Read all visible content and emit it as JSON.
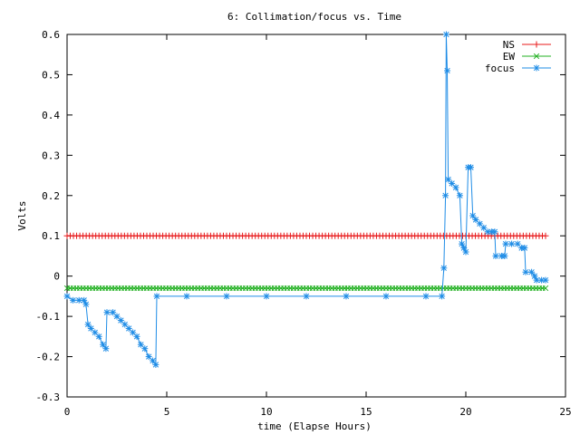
{
  "chart_data": {
    "type": "line",
    "title": "6: Collimation/focus vs. Time",
    "xlabel": "time (Elapse Hours)",
    "ylabel": "Volts",
    "xlim": [
      0,
      25
    ],
    "ylim": [
      -0.3,
      0.6
    ],
    "x_ticks": [
      0,
      5,
      10,
      15,
      20,
      25
    ],
    "y_ticks": [
      -0.3,
      -0.2,
      -0.1,
      0,
      0.1,
      0.2,
      0.3,
      0.4,
      0.5,
      0.6
    ],
    "x_tick_labels": [
      "0",
      "5",
      "10",
      "15",
      "20",
      "25"
    ],
    "y_tick_labels": [
      "-0.3",
      "-0.2",
      "-0.1",
      "0",
      "0.1",
      "0.2",
      "0.3",
      "0.4",
      "0.5",
      "0.6"
    ],
    "grid": false,
    "legend_position": "top-right",
    "series": [
      {
        "name": "NS",
        "color": "#e8191a",
        "marker": "plus",
        "x_range": [
          0,
          24
        ],
        "constant_value": 0.1
      },
      {
        "name": "EW",
        "color": "#20b020",
        "marker": "cross",
        "x_range": [
          0,
          24
        ],
        "constant_value": -0.03
      },
      {
        "name": "focus",
        "color": "#1e8ce6",
        "marker": "star",
        "points": [
          [
            0,
            -0.05
          ],
          [
            0.3,
            -0.06
          ],
          [
            0.6,
            -0.06
          ],
          [
            0.85,
            -0.06
          ],
          [
            0.95,
            -0.07
          ],
          [
            1.05,
            -0.12
          ],
          [
            1.2,
            -0.13
          ],
          [
            1.4,
            -0.14
          ],
          [
            1.6,
            -0.15
          ],
          [
            1.8,
            -0.17
          ],
          [
            1.95,
            -0.18
          ],
          [
            2.0,
            -0.09
          ],
          [
            2.3,
            -0.09
          ],
          [
            2.5,
            -0.1
          ],
          [
            2.7,
            -0.11
          ],
          [
            2.9,
            -0.12
          ],
          [
            3.1,
            -0.13
          ],
          [
            3.3,
            -0.14
          ],
          [
            3.5,
            -0.15
          ],
          [
            3.7,
            -0.17
          ],
          [
            3.9,
            -0.18
          ],
          [
            4.1,
            -0.2
          ],
          [
            4.3,
            -0.21
          ],
          [
            4.45,
            -0.22
          ],
          [
            4.5,
            -0.05
          ],
          [
            6,
            -0.05
          ],
          [
            8,
            -0.05
          ],
          [
            10,
            -0.05
          ],
          [
            12,
            -0.05
          ],
          [
            14,
            -0.05
          ],
          [
            16,
            -0.05
          ],
          [
            18,
            -0.05
          ],
          [
            18.8,
            -0.05
          ],
          [
            18.9,
            0.02
          ],
          [
            18.98,
            0.2
          ],
          [
            19.02,
            0.6
          ],
          [
            19.07,
            0.51
          ],
          [
            19.12,
            0.24
          ],
          [
            19.3,
            0.23
          ],
          [
            19.5,
            0.22
          ],
          [
            19.7,
            0.2
          ],
          [
            19.8,
            0.08
          ],
          [
            19.9,
            0.07
          ],
          [
            20.0,
            0.06
          ],
          [
            20.12,
            0.27
          ],
          [
            20.25,
            0.27
          ],
          [
            20.35,
            0.15
          ],
          [
            20.5,
            0.14
          ],
          [
            20.7,
            0.13
          ],
          [
            20.9,
            0.12
          ],
          [
            21.1,
            0.11
          ],
          [
            21.3,
            0.11
          ],
          [
            21.45,
            0.11
          ],
          [
            21.5,
            0.05
          ],
          [
            21.8,
            0.05
          ],
          [
            21.95,
            0.05
          ],
          [
            22.0,
            0.08
          ],
          [
            22.3,
            0.08
          ],
          [
            22.6,
            0.08
          ],
          [
            22.8,
            0.07
          ],
          [
            22.95,
            0.07
          ],
          [
            23.0,
            0.01
          ],
          [
            23.3,
            0.01
          ],
          [
            23.45,
            0.0
          ],
          [
            23.55,
            -0.01
          ],
          [
            23.8,
            -0.01
          ],
          [
            24.0,
            -0.01
          ]
        ]
      }
    ]
  }
}
